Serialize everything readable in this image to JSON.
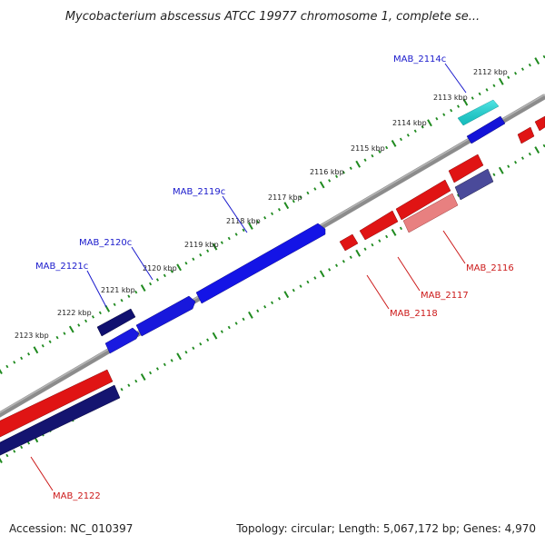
{
  "title": "Mycobacterium abscessus ATCC 19977 chromosome 1, complete se...",
  "footer": {
    "accession": "Accession: NC_010397",
    "summary": "Topology: circular; Length: 5,067,172 bp; Genes: 4,970"
  },
  "colors": {
    "backbone": "#8a8a8a",
    "tick": "#1f8a1f",
    "forward_label": "#1a1acc",
    "reverse_label": "#cc1a1a"
  },
  "kbp_labels": [
    "2112 kbp",
    "2113 kbp",
    "2114 kbp",
    "2115 kbp",
    "2116 kbp",
    "2117 kbp",
    "2118 kbp",
    "2119 kbp",
    "2120 kbp",
    "2121 kbp",
    "2122 kbp",
    "2123 kbp"
  ],
  "genes_forward": [
    {
      "label": "MAB_2114c",
      "color": "#19dede"
    },
    {
      "label": "MAB_2119c",
      "color": "#0d18e0"
    },
    {
      "label": "MAB_2120c",
      "color": "#1a1ad8"
    },
    {
      "label": "MAB_2121c",
      "color": "#10106e"
    }
  ],
  "genes_reverse": [
    {
      "label": "MAB_2116",
      "color": "#e88080"
    },
    {
      "label": "MAB_2117",
      "color": "#e01414"
    },
    {
      "label": "MAB_2118",
      "color": "#e01414"
    },
    {
      "label": "MAB_2122",
      "color": "#e01414"
    }
  ]
}
